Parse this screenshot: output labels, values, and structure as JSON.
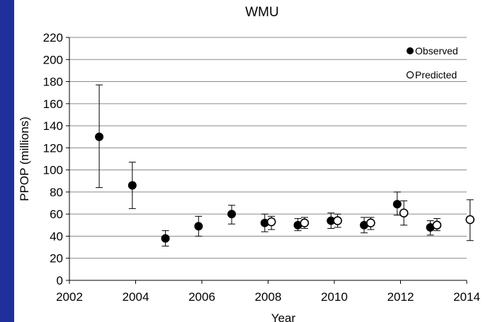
{
  "chart_data": {
    "type": "scatter",
    "title": "WMU",
    "xlabel": "Year",
    "ylabel": "PPOP (millions)",
    "xlim": [
      2002,
      2014
    ],
    "ylim": [
      0,
      220
    ],
    "x_ticks": [
      "2002",
      "2004",
      "2006",
      "2008",
      "2010",
      "2012",
      "2014"
    ],
    "y_ticks": [
      "0",
      "20",
      "40",
      "60",
      "80",
      "100",
      "120",
      "140",
      "160",
      "180",
      "200",
      "220"
    ],
    "grid": "horizontal",
    "legend_position": "top-right",
    "series": [
      {
        "name": "Observed",
        "marker": "filled-circle",
        "color": "#000000",
        "points": [
          {
            "x": 2002.9,
            "y": 130,
            "low": 84,
            "high": 177
          },
          {
            "x": 2003.9,
            "y": 86,
            "low": 65,
            "high": 107
          },
          {
            "x": 2004.9,
            "y": 38,
            "low": 31,
            "high": 45
          },
          {
            "x": 2005.9,
            "y": 49,
            "low": 40,
            "high": 58
          },
          {
            "x": 2006.9,
            "y": 60,
            "low": 51,
            "high": 68
          },
          {
            "x": 2007.9,
            "y": 52,
            "low": 44,
            "high": 60
          },
          {
            "x": 2008.9,
            "y": 50,
            "low": 45,
            "high": 56
          },
          {
            "x": 2009.9,
            "y": 54,
            "low": 47,
            "high": 61
          },
          {
            "x": 2010.9,
            "y": 50,
            "low": 43,
            "high": 57
          },
          {
            "x": 2011.9,
            "y": 69,
            "low": 59,
            "high": 80
          },
          {
            "x": 2012.9,
            "y": 48,
            "low": 41,
            "high": 54
          }
        ]
      },
      {
        "name": "Predicted",
        "marker": "open-circle",
        "color": "#000000",
        "points": [
          {
            "x": 2008.1,
            "y": 53,
            "low": 46,
            "high": 58
          },
          {
            "x": 2009.1,
            "y": 52,
            "low": 47,
            "high": 57
          },
          {
            "x": 2010.1,
            "y": 54,
            "low": 48,
            "high": 60
          },
          {
            "x": 2011.1,
            "y": 52,
            "low": 46,
            "high": 57
          },
          {
            "x": 2012.1,
            "y": 61,
            "low": 50,
            "high": 72
          },
          {
            "x": 2013.1,
            "y": 50,
            "low": 45,
            "high": 56
          },
          {
            "x": 2014.1,
            "y": 55,
            "low": 36,
            "high": 73
          }
        ]
      }
    ]
  }
}
